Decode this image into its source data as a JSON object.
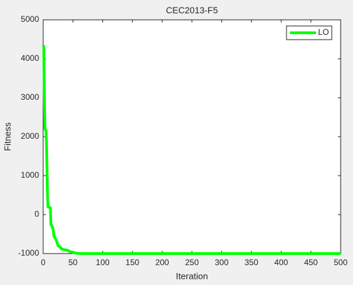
{
  "chart_data": {
    "type": "line",
    "title": "CEC2013-F5",
    "x_label": "Iteration",
    "y_label": "Fitness",
    "series": [
      {
        "name": "LO",
        "color": "#00ff00",
        "x": [
          1,
          2,
          3,
          5,
          6,
          7,
          8,
          12,
          13,
          15,
          17,
          18,
          20,
          22,
          25,
          28,
          30,
          35,
          40,
          45,
          50,
          55,
          60,
          65,
          70,
          100,
          200,
          300,
          400,
          500
        ],
        "values": [
          4350,
          3000,
          2200,
          2150,
          1500,
          700,
          200,
          180,
          -250,
          -300,
          -400,
          -550,
          -600,
          -650,
          -800,
          -830,
          -870,
          -900,
          -910,
          -950,
          -970,
          -990,
          -995,
          -1000,
          -1000,
          -1000,
          -1000,
          -1000,
          -1000,
          -1000
        ]
      }
    ],
    "xlim": [
      0,
      500
    ],
    "xticks": [
      0,
      50,
      100,
      150,
      200,
      250,
      300,
      350,
      400,
      450,
      500
    ],
    "ylim": [
      -1000,
      5000
    ],
    "yticks": [
      -1000,
      0,
      1000,
      2000,
      3000,
      4000,
      5000
    ],
    "legend": "top-right"
  }
}
